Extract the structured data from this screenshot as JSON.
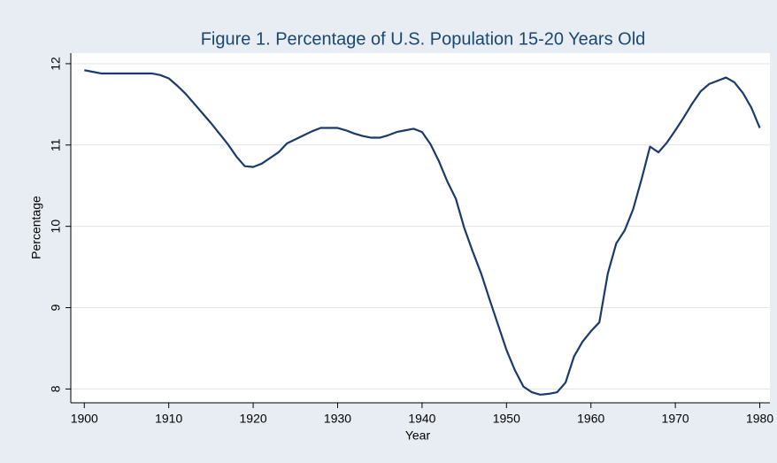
{
  "chart_data": {
    "type": "line",
    "title": "Figure 1.  Percentage of U.S. Population 15-20 Years Old",
    "xlabel": "Year",
    "ylabel": "Percentage",
    "x": [
      1900,
      1901,
      1902,
      1903,
      1904,
      1905,
      1906,
      1907,
      1908,
      1909,
      1910,
      1911,
      1912,
      1913,
      1914,
      1915,
      1916,
      1917,
      1918,
      1919,
      1920,
      1921,
      1922,
      1923,
      1924,
      1925,
      1926,
      1927,
      1928,
      1929,
      1930,
      1931,
      1932,
      1933,
      1934,
      1935,
      1936,
      1937,
      1938,
      1939,
      1940,
      1941,
      1942,
      1943,
      1944,
      1945,
      1946,
      1947,
      1948,
      1949,
      1950,
      1951,
      1952,
      1953,
      1954,
      1955,
      1956,
      1957,
      1958,
      1959,
      1960,
      1961,
      1962,
      1963,
      1964,
      1965,
      1966,
      1967,
      1968,
      1969,
      1970,
      1971,
      1972,
      1973,
      1974,
      1975,
      1976,
      1977,
      1978,
      1979,
      1980
    ],
    "series": [
      {
        "name": "Percentage",
        "color": "#1a3a6b",
        "values": [
          11.92,
          11.9,
          11.88,
          11.88,
          11.88,
          11.88,
          11.88,
          11.88,
          11.88,
          11.86,
          11.82,
          11.73,
          11.63,
          11.51,
          11.39,
          11.27,
          11.14,
          11.01,
          10.86,
          10.74,
          10.73,
          10.77,
          10.84,
          10.91,
          11.02,
          11.07,
          11.12,
          11.17,
          11.21,
          11.21,
          11.21,
          11.18,
          11.14,
          11.11,
          11.09,
          11.09,
          11.12,
          11.16,
          11.18,
          11.2,
          11.16,
          11.01,
          10.8,
          10.55,
          10.34,
          9.98,
          9.69,
          9.42,
          9.1,
          8.79,
          8.48,
          8.23,
          8.03,
          7.96,
          7.93,
          7.94,
          7.96,
          8.08,
          8.4,
          8.58,
          8.71,
          8.82,
          9.42,
          9.79,
          9.95,
          10.21,
          10.58,
          10.98,
          10.91,
          11.03,
          11.18,
          11.34,
          11.51,
          11.66,
          11.75,
          11.79,
          11.83,
          11.77,
          11.64,
          11.46,
          11.21
        ]
      }
    ],
    "xlim": [
      1898.4,
      1981.2
    ],
    "xticks": [
      1900,
      1910,
      1920,
      1930,
      1940,
      1950,
      1960,
      1970,
      1980
    ],
    "ylim": [
      7.83,
      12.13
    ],
    "yticks": [
      8,
      9,
      10,
      11,
      12
    ],
    "grid": true
  }
}
